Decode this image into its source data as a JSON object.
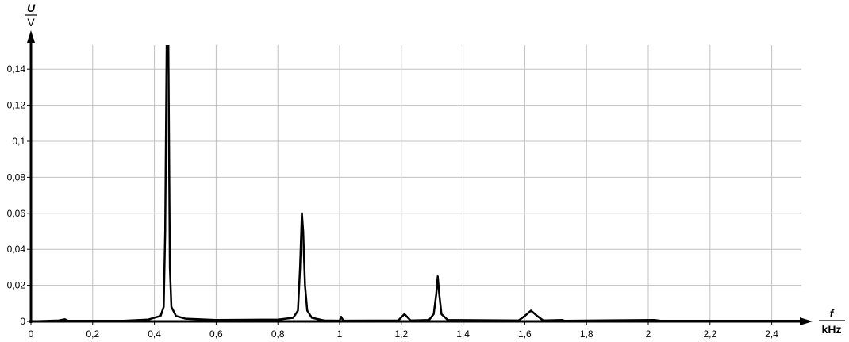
{
  "chart_data": {
    "type": "line",
    "title": "",
    "xlabel": {
      "symbol": "f",
      "unit": "kHz"
    },
    "ylabel": {
      "symbol": "U",
      "unit": "V"
    },
    "xlim": [
      0,
      2.5
    ],
    "ylim": [
      0,
      0.153
    ],
    "grid": true,
    "x_ticks": [
      "0",
      "0,2",
      "0,4",
      "0,6",
      "0,8",
      "1",
      "1,2",
      "1,4",
      "1,6",
      "1,8",
      "2",
      "2,2",
      "2,4"
    ],
    "x_tick_values": [
      0,
      0.2,
      0.4,
      0.6,
      0.8,
      1.0,
      1.2,
      1.4,
      1.6,
      1.8,
      2.0,
      2.2,
      2.4
    ],
    "y_ticks": [
      "0",
      "0,02",
      "0,04",
      "0,06",
      "0,08",
      "0,1",
      "0,12",
      "0,14"
    ],
    "y_tick_values": [
      0,
      0.02,
      0.04,
      0.06,
      0.08,
      0.1,
      0.12,
      0.14
    ],
    "line_color": "#000000",
    "grid_color": "#c0c0c0",
    "series": [
      {
        "points": [
          [
            0,
            0
          ],
          [
            0.09,
            0.0005
          ],
          [
            0.11,
            0.0012
          ],
          [
            0.12,
            0.0003
          ],
          [
            0.3,
            0.0003
          ],
          [
            0.38,
            0.001
          ],
          [
            0.42,
            0.003
          ],
          [
            0.43,
            0.008
          ],
          [
            0.435,
            0.05
          ],
          [
            0.44,
            0.16
          ],
          [
            0.445,
            0.16
          ],
          [
            0.45,
            0.03
          ],
          [
            0.455,
            0.008
          ],
          [
            0.47,
            0.003
          ],
          [
            0.5,
            0.0015
          ],
          [
            0.6,
            0.0008
          ],
          [
            0.8,
            0.001
          ],
          [
            0.85,
            0.002
          ],
          [
            0.865,
            0.006
          ],
          [
            0.872,
            0.03
          ],
          [
            0.878,
            0.06
          ],
          [
            0.882,
            0.05
          ],
          [
            0.888,
            0.02
          ],
          [
            0.895,
            0.006
          ],
          [
            0.91,
            0.002
          ],
          [
            0.95,
            0.0005
          ],
          [
            1.0,
            0.0004
          ],
          [
            1.005,
            0.0025
          ],
          [
            1.012,
            0.0004
          ],
          [
            1.19,
            0.0005
          ],
          [
            1.21,
            0.004
          ],
          [
            1.23,
            0.0005
          ],
          [
            1.29,
            0.0008
          ],
          [
            1.305,
            0.004
          ],
          [
            1.313,
            0.015
          ],
          [
            1.318,
            0.025
          ],
          [
            1.323,
            0.015
          ],
          [
            1.33,
            0.004
          ],
          [
            1.35,
            0.0008
          ],
          [
            1.58,
            0.0005
          ],
          [
            1.6,
            0.003
          ],
          [
            1.62,
            0.006
          ],
          [
            1.64,
            0.003
          ],
          [
            1.66,
            0.0005
          ],
          [
            1.72,
            0.0008
          ],
          [
            1.73,
            0.0003
          ],
          [
            2.02,
            0.0008
          ],
          [
            2.04,
            0.0003
          ],
          [
            2.5,
            0.0003
          ]
        ]
      }
    ]
  }
}
